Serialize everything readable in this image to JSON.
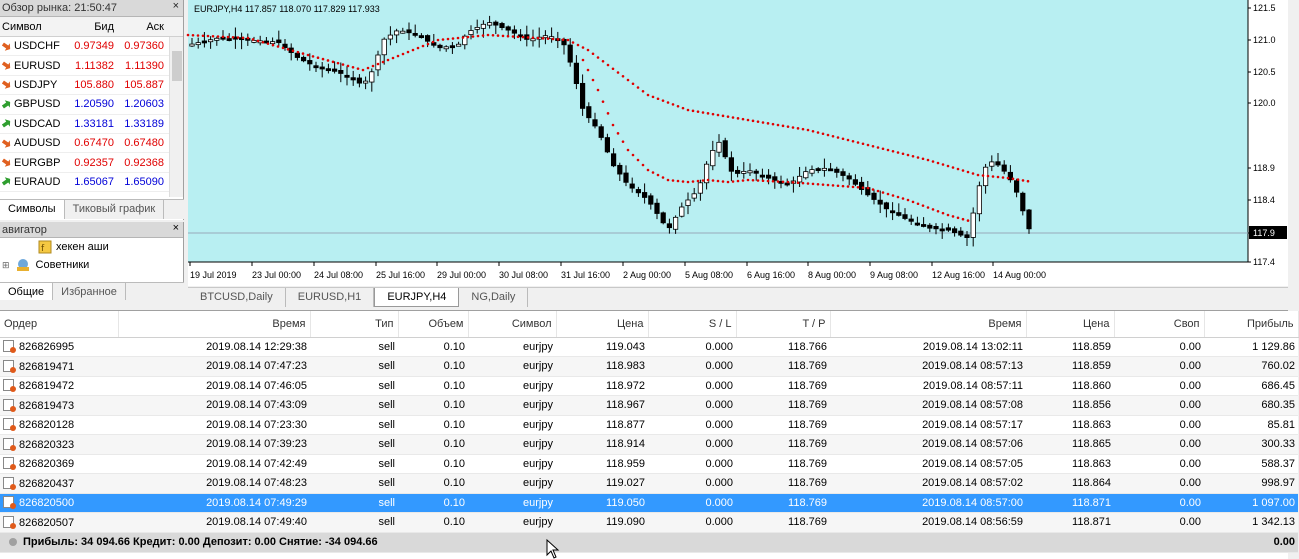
{
  "market_watch": {
    "title": "Обзор рынка: 21:50:47",
    "close_glyph": "×",
    "columns": {
      "symbol": "Символ",
      "bid": "Бид",
      "ask": "Аск"
    },
    "rows": [
      {
        "symbol": "USDCHF",
        "bid": "0.97349",
        "ask": "0.97360",
        "dir": "down",
        "color": "red"
      },
      {
        "symbol": "EURUSD",
        "bid": "1.11382",
        "ask": "1.11390",
        "dir": "down",
        "color": "red"
      },
      {
        "symbol": "USDJPY",
        "bid": "105.880",
        "ask": "105.887",
        "dir": "down",
        "color": "red"
      },
      {
        "symbol": "GBPUSD",
        "bid": "1.20590",
        "ask": "1.20603",
        "dir": "up",
        "color": "blue"
      },
      {
        "symbol": "USDCAD",
        "bid": "1.33181",
        "ask": "1.33189",
        "dir": "up",
        "color": "blue"
      },
      {
        "symbol": "AUDUSD",
        "bid": "0.67470",
        "ask": "0.67480",
        "dir": "down",
        "color": "red"
      },
      {
        "symbol": "EURGBP",
        "bid": "0.92357",
        "ask": "0.92368",
        "dir": "down",
        "color": "red"
      },
      {
        "symbol": "EURAUD",
        "bid": "1.65067",
        "ask": "1.65090",
        "dir": "up",
        "color": "blue"
      }
    ],
    "tabs": [
      "Символы",
      "Тиковый график"
    ]
  },
  "navigator": {
    "title": "авигатор",
    "close_glyph": "×",
    "items": [
      "хекен аши",
      "Советники"
    ],
    "tabs": [
      "Общие",
      "Избранное"
    ]
  },
  "chart": {
    "label": "EURJPY,H4  117.857 118.070 117.829 117.933",
    "price_labels": [
      "121.5",
      "121.0",
      "120.5",
      "120.0",
      "118.9",
      "118.4",
      "117.9",
      "117.4"
    ],
    "current_price": "117.9",
    "time_labels": [
      "19 Jul 2019",
      "23 Jul 00:00",
      "24 Jul 08:00",
      "25 Jul 16:00",
      "29 Jul 00:00",
      "30 Jul 08:00",
      "31 Jul 16:00",
      "2 Aug 00:00",
      "5 Aug 08:00",
      "6 Aug 16:00",
      "8 Aug 00:00",
      "9 Aug 08:00",
      "12 Aug 16:00",
      "14 Aug 00:00"
    ],
    "colors": {
      "background": "#b8eff2",
      "up_candle": "#ffffff",
      "down_candle": "#000000",
      "indicator": "#e00000"
    }
  },
  "chart_tabs": [
    "BTCUSD,Daily",
    "EURUSD,H1",
    "EURJPY,H4",
    "NG,Daily"
  ],
  "chart_tabs_active": "EURJPY,H4",
  "trades": {
    "columns": [
      "Ордер",
      "Время",
      "Тип",
      "Объем",
      "Символ",
      "Цена",
      "S / L",
      "T / P",
      "Время",
      "Цена",
      "Своп",
      "Прибыль"
    ],
    "rows": [
      [
        "826826995",
        "2019.08.14 12:29:38",
        "sell",
        "0.10",
        "eurjpy",
        "119.043",
        "0.000",
        "118.766",
        "2019.08.14 13:02:11",
        "118.859",
        "0.00",
        "1 129.86"
      ],
      [
        "826819471",
        "2019.08.14 07:47:23",
        "sell",
        "0.10",
        "eurjpy",
        "118.983",
        "0.000",
        "118.769",
        "2019.08.14 08:57:13",
        "118.859",
        "0.00",
        "760.02"
      ],
      [
        "826819472",
        "2019.08.14 07:46:05",
        "sell",
        "0.10",
        "eurjpy",
        "118.972",
        "0.000",
        "118.769",
        "2019.08.14 08:57:11",
        "118.860",
        "0.00",
        "686.45"
      ],
      [
        "826819473",
        "2019.08.14 07:43:09",
        "sell",
        "0.10",
        "eurjpy",
        "118.967",
        "0.000",
        "118.769",
        "2019.08.14 08:57:08",
        "118.856",
        "0.00",
        "680.35"
      ],
      [
        "826820128",
        "2019.08.14 07:23:30",
        "sell",
        "0.10",
        "eurjpy",
        "118.877",
        "0.000",
        "118.769",
        "2019.08.14 08:57:17",
        "118.863",
        "0.00",
        "85.81"
      ],
      [
        "826820323",
        "2019.08.14 07:39:23",
        "sell",
        "0.10",
        "eurjpy",
        "118.914",
        "0.000",
        "118.769",
        "2019.08.14 08:57:06",
        "118.865",
        "0.00",
        "300.33"
      ],
      [
        "826820369",
        "2019.08.14 07:42:49",
        "sell",
        "0.10",
        "eurjpy",
        "118.959",
        "0.000",
        "118.769",
        "2019.08.14 08:57:05",
        "118.863",
        "0.00",
        "588.37"
      ],
      [
        "826820437",
        "2019.08.14 07:48:23",
        "sell",
        "0.10",
        "eurjpy",
        "119.027",
        "0.000",
        "118.769",
        "2019.08.14 08:57:02",
        "118.864",
        "0.00",
        "998.97"
      ],
      [
        "826820500",
        "2019.08.14 07:49:29",
        "sell",
        "0.10",
        "eurjpy",
        "119.050",
        "0.000",
        "118.769",
        "2019.08.14 08:57:00",
        "118.871",
        "0.00",
        "1 097.00"
      ],
      [
        "826820507",
        "2019.08.14 07:49:40",
        "sell",
        "0.10",
        "eurjpy",
        "119.090",
        "0.000",
        "118.769",
        "2019.08.14 08:56:59",
        "118.871",
        "0.00",
        "1 342.13"
      ]
    ],
    "selected_row": 8,
    "summary": {
      "text": "Прибыль: 34 094.66  Кредит: 0.00  Депозит: 0.00  Снятие: -34 094.66",
      "total": "0.00"
    }
  }
}
